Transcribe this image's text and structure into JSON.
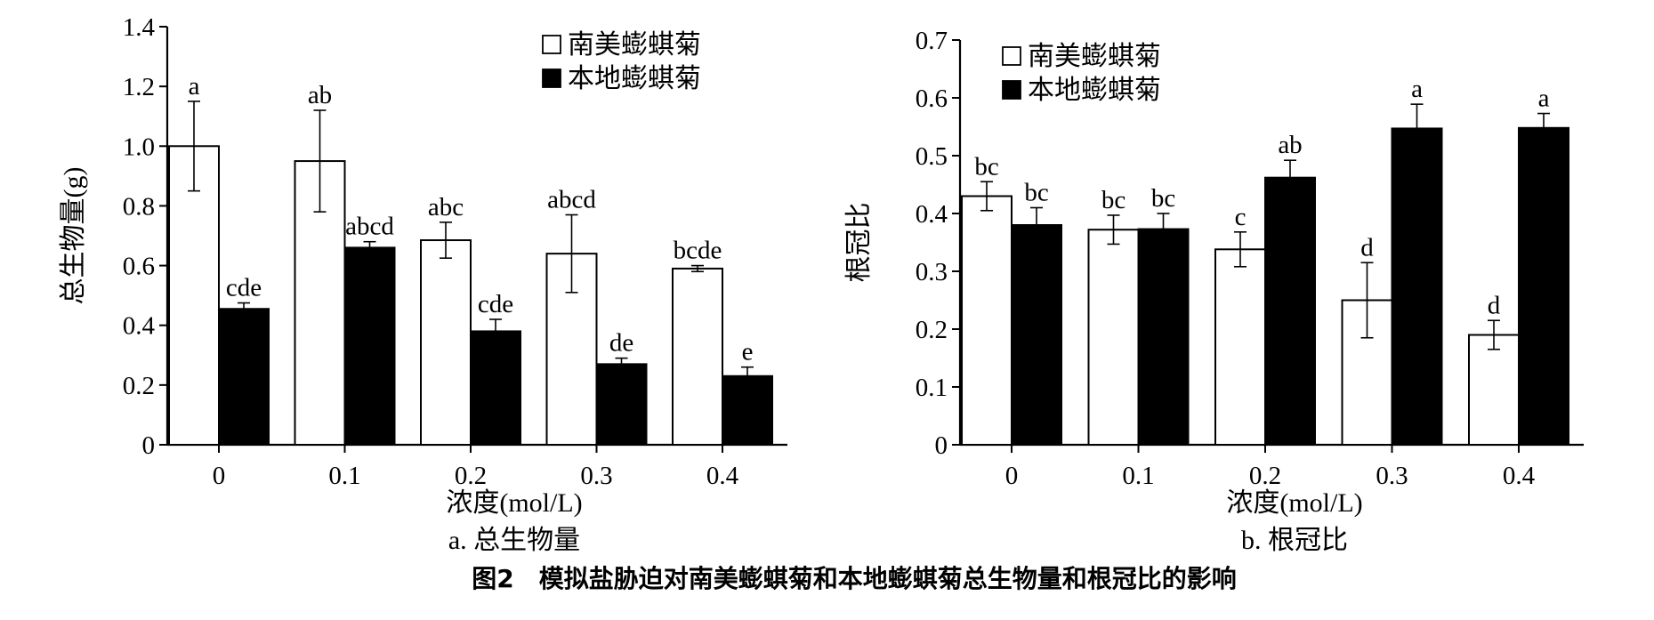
{
  "figure": {
    "caption": "图2　模拟盐胁迫对南美蟛蜞菊和本地蟛蜞菊总生物量和根冠比的影响"
  },
  "chart_data": [
    {
      "type": "bar",
      "subtitle": "a. 总生物量",
      "xlabel": "浓度(mol/L)",
      "ylabel": "总生物量(g)",
      "ylim": [
        0,
        1.4
      ],
      "yticks": [
        "0",
        "0.2",
        "0.4",
        "0.6",
        "0.8",
        "1.0",
        "1.2",
        "1.4"
      ],
      "categories": [
        "0",
        "0.1",
        "0.2",
        "0.3",
        "0.4"
      ],
      "legend_position": "top-right",
      "series": [
        {
          "name": "南美蟛蜞菊",
          "fill": "#ffffff",
          "values": [
            1.0,
            0.95,
            0.685,
            0.64,
            0.59
          ],
          "errors": [
            0.15,
            0.17,
            0.06,
            0.13,
            0.01
          ],
          "labels": [
            "a",
            "ab",
            "abc",
            "abcd",
            "bcde"
          ]
        },
        {
          "name": "本地蟛蜞菊",
          "fill": "#000000",
          "values": [
            0.455,
            0.66,
            0.38,
            0.27,
            0.23
          ],
          "errors": [
            0.02,
            0.02,
            0.04,
            0.02,
            0.03
          ],
          "labels": [
            "cde",
            "abcd",
            "cde",
            "de",
            "e"
          ]
        }
      ]
    },
    {
      "type": "bar",
      "subtitle": "b. 根冠比",
      "xlabel": "浓度(mol/L)",
      "ylabel": "根冠比",
      "ylim": [
        0,
        0.7
      ],
      "yticks": [
        "0",
        "0.1",
        "0.2",
        "0.3",
        "0.4",
        "0.5",
        "0.6",
        "0.7"
      ],
      "categories": [
        "0",
        "0.1",
        "0.2",
        "0.3",
        "0.4"
      ],
      "legend_position": "top-left",
      "series": [
        {
          "name": "南美蟛蜞菊",
          "fill": "#ffffff",
          "values": [
            0.43,
            0.372,
            0.338,
            0.25,
            0.19
          ],
          "errors": [
            0.025,
            0.025,
            0.03,
            0.065,
            0.025
          ],
          "labels": [
            "bc",
            "bc",
            "c",
            "d",
            "d"
          ]
        },
        {
          "name": "本地蟛蜞菊",
          "fill": "#000000",
          "values": [
            0.38,
            0.373,
            0.462,
            0.547,
            0.548
          ],
          "errors": [
            0.03,
            0.027,
            0.03,
            0.042,
            0.025
          ],
          "labels": [
            "bc",
            "bc",
            "ab",
            "a",
            "a"
          ]
        }
      ]
    }
  ]
}
